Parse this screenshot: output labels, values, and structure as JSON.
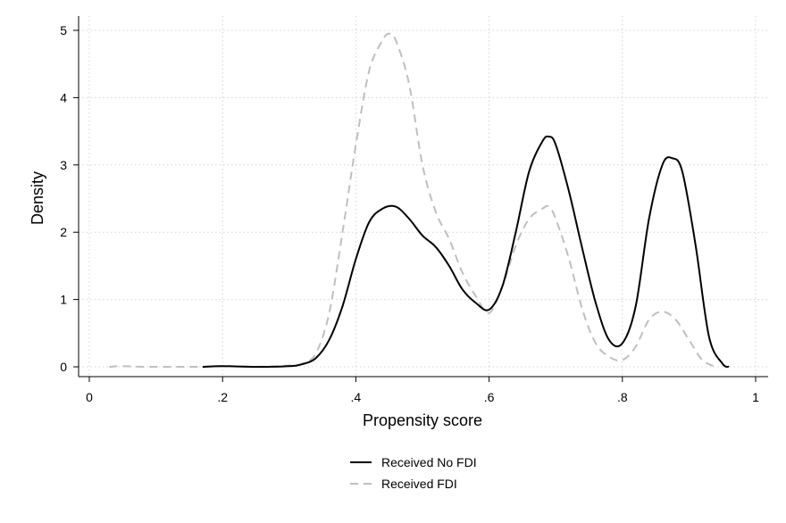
{
  "chart_data": {
    "type": "line",
    "xlabel": "Propensity score",
    "ylabel": "Density",
    "xlim": [
      0,
      1
    ],
    "ylim": [
      0,
      5
    ],
    "x_ticks": [
      {
        "value": 0,
        "label": "0"
      },
      {
        "value": 0.2,
        "label": ".2"
      },
      {
        "value": 0.4,
        "label": ".4"
      },
      {
        "value": 0.6,
        "label": ".6"
      },
      {
        "value": 0.8,
        "label": ".8"
      },
      {
        "value": 1,
        "label": "1"
      }
    ],
    "y_ticks": [
      {
        "value": 0,
        "label": "0"
      },
      {
        "value": 1,
        "label": "1"
      },
      {
        "value": 2,
        "label": "2"
      },
      {
        "value": 3,
        "label": "3"
      },
      {
        "value": 4,
        "label": "4"
      },
      {
        "value": 5,
        "label": "5"
      }
    ],
    "grid": true,
    "legend_position": "bottom",
    "series": [
      {
        "name": "Received No FDI",
        "color": "#000000",
        "dash": "solid",
        "x": [
          0.17,
          0.2,
          0.25,
          0.3,
          0.32,
          0.34,
          0.36,
          0.38,
          0.4,
          0.42,
          0.44,
          0.46,
          0.48,
          0.5,
          0.52,
          0.54,
          0.56,
          0.58,
          0.6,
          0.62,
          0.64,
          0.66,
          0.68,
          0.69,
          0.7,
          0.72,
          0.74,
          0.76,
          0.78,
          0.8,
          0.82,
          0.84,
          0.86,
          0.875,
          0.89,
          0.91,
          0.93,
          0.95,
          0.96
        ],
        "y": [
          0,
          0.01,
          0,
          0.01,
          0.04,
          0.13,
          0.4,
          0.9,
          1.6,
          2.15,
          2.35,
          2.38,
          2.2,
          1.95,
          1.78,
          1.5,
          1.15,
          0.95,
          0.85,
          1.2,
          2.0,
          2.9,
          3.35,
          3.42,
          3.3,
          2.6,
          1.75,
          0.95,
          0.4,
          0.35,
          0.9,
          2.2,
          3.0,
          3.1,
          2.9,
          1.8,
          0.45,
          0.05,
          0
        ]
      },
      {
        "name": "Received FDI",
        "color": "#bfbfbf",
        "dash": "dashed",
        "x": [
          0.03,
          0.05,
          0.08,
          0.12,
          0.16,
          0.2,
          0.25,
          0.3,
          0.32,
          0.34,
          0.36,
          0.38,
          0.4,
          0.42,
          0.44,
          0.45,
          0.46,
          0.48,
          0.5,
          0.52,
          0.54,
          0.56,
          0.58,
          0.6,
          0.62,
          0.64,
          0.66,
          0.68,
          0.69,
          0.7,
          0.72,
          0.74,
          0.76,
          0.78,
          0.8,
          0.82,
          0.84,
          0.86,
          0.88,
          0.9,
          0.92,
          0.94
        ],
        "y": [
          0,
          0.01,
          0,
          0,
          0,
          0.01,
          0,
          0.02,
          0.05,
          0.2,
          0.8,
          2.0,
          3.3,
          4.4,
          4.85,
          4.95,
          4.85,
          4.2,
          3.0,
          2.3,
          1.9,
          1.4,
          1.05,
          0.8,
          1.2,
          1.8,
          2.2,
          2.35,
          2.38,
          2.2,
          1.6,
          0.85,
          0.35,
          0.15,
          0.1,
          0.3,
          0.7,
          0.82,
          0.7,
          0.4,
          0.1,
          0
        ]
      }
    ]
  }
}
